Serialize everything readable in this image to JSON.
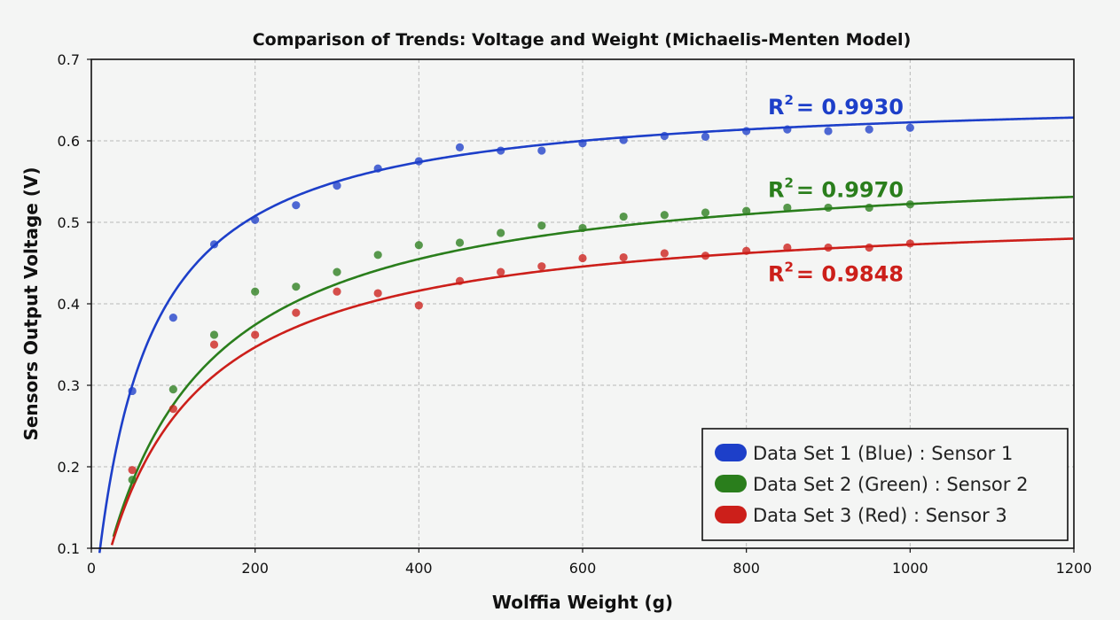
{
  "chart_data": {
    "type": "scatter",
    "title": "Comparison of Trends: Voltage and Weight (Michaelis-Menten Model)",
    "xlabel": "Wolffia Weight (g)",
    "ylabel": "Sensors Output Voltage (V)",
    "xlim": [
      0,
      1200
    ],
    "ylim": [
      0.1,
      0.7
    ],
    "x_ticks": [
      "0",
      "200",
      "400",
      "600",
      "800",
      "1000",
      "1200"
    ],
    "y_ticks": [
      "0.1",
      "0.2",
      "0.3",
      "0.4",
      "0.5",
      "0.6",
      "0.7"
    ],
    "grid": true,
    "legend_position": "bottom-right",
    "x": [
      50,
      100,
      150,
      200,
      250,
      300,
      350,
      400,
      450,
      500,
      550,
      600,
      650,
      700,
      750,
      800,
      850,
      900,
      950,
      1000
    ],
    "series": [
      {
        "name": "Data Set 1 (Blue) : Sensor 1",
        "color": "#1d3fc9",
        "r2_label": "R",
        "r2_value": "= 0.9930",
        "values": [
          0.293,
          0.383,
          0.473,
          0.503,
          0.521,
          0.545,
          0.566,
          0.575,
          0.592,
          0.588,
          0.588,
          0.597,
          0.601,
          0.606,
          0.605,
          0.612,
          0.614,
          0.612,
          0.614,
          0.616
        ],
        "fit_curve": {
          "vmax": 0.66,
          "km": 60,
          "x_min": 10,
          "x_max": 1200
        }
      },
      {
        "name": "Data Set 2 (Green) : Sensor 2",
        "color": "#2a7e1c",
        "r2_label": "R",
        "r2_value": "= 0.9970",
        "values": [
          0.184,
          0.295,
          0.362,
          0.415,
          0.421,
          0.439,
          0.46,
          0.472,
          0.475,
          0.487,
          0.496,
          0.493,
          0.507,
          0.509,
          0.512,
          0.514,
          0.518,
          0.518,
          0.518,
          0.522
        ],
        "fit_curve": {
          "vmax": 0.58,
          "km": 110,
          "x_min": 27,
          "x_max": 1200
        }
      },
      {
        "name": "Data Set 3 (Red) : Sensor 3",
        "color": "#cc1f1a",
        "r2_label": "R",
        "r2_value": "= 0.9848",
        "values": [
          0.196,
          0.271,
          0.35,
          0.362,
          0.389,
          0.415,
          0.413,
          0.398,
          0.428,
          0.439,
          0.446,
          0.456,
          0.457,
          0.462,
          0.459,
          0.465,
          0.469,
          0.469,
          0.469,
          0.474
        ],
        "fit_curve": {
          "vmax": 0.52,
          "km": 100,
          "x_min": 25,
          "x_max": 1200
        }
      }
    ]
  }
}
